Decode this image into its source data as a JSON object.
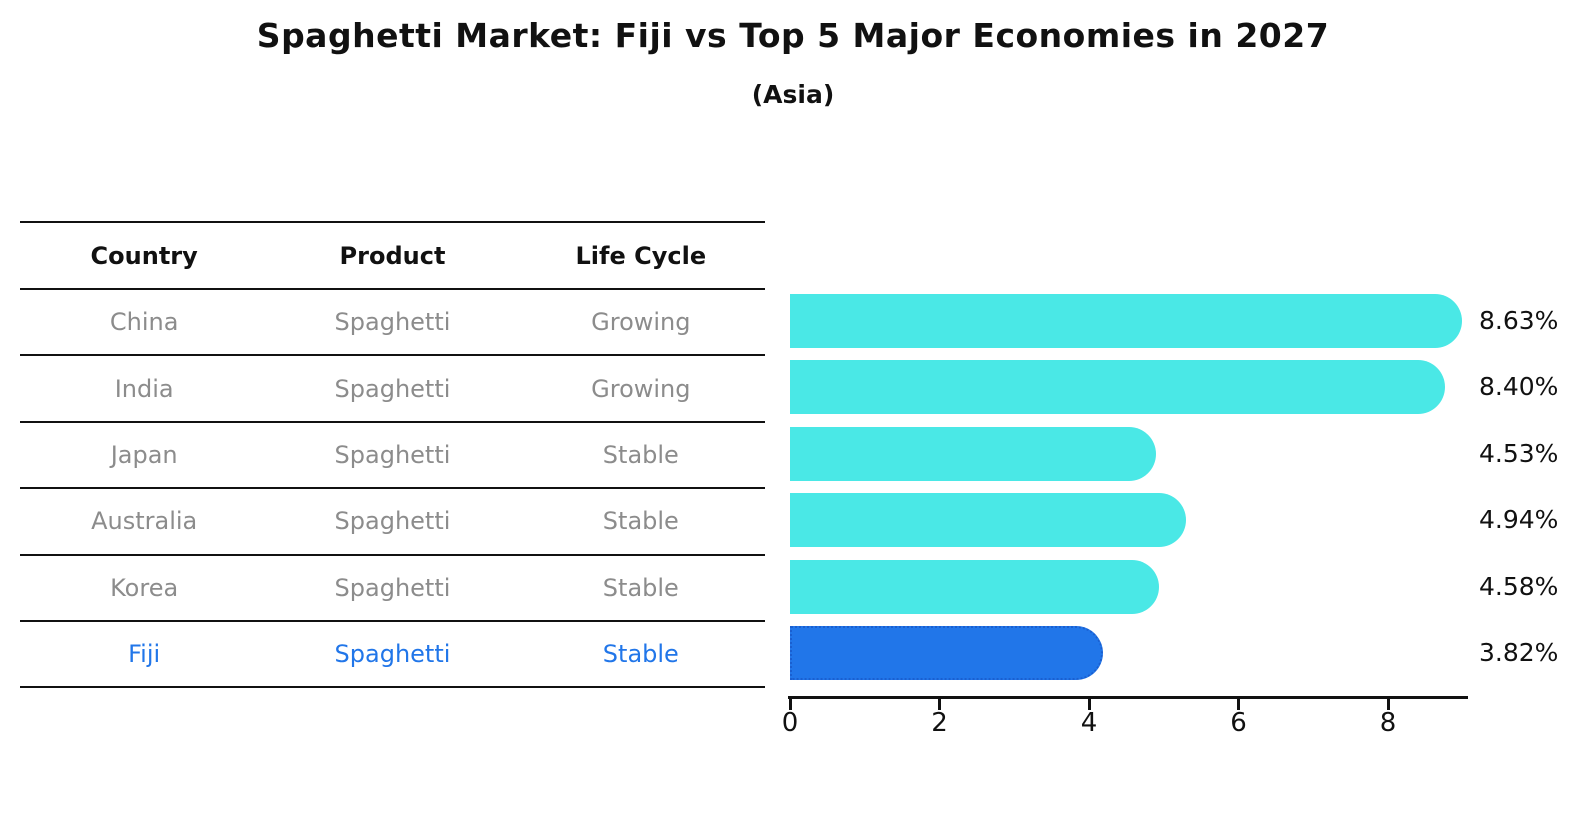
{
  "title": "Spaghetti Market: Fiji vs Top 5 Major Economies in 2027",
  "subtitle": "(Asia)",
  "table": {
    "headers": [
      "Country",
      "Product",
      "Life Cycle"
    ],
    "rows": [
      {
        "country": "China",
        "product": "Spaghetti",
        "life_cycle": "Growing",
        "highlighted": false
      },
      {
        "country": "India",
        "product": "Spaghetti",
        "life_cycle": "Growing",
        "highlighted": false
      },
      {
        "country": "Japan",
        "product": "Spaghetti",
        "life_cycle": "Stable",
        "highlighted": false
      },
      {
        "country": "Australia",
        "product": "Spaghetti",
        "life_cycle": "Stable",
        "highlighted": false
      },
      {
        "country": "Korea",
        "product": "Spaghetti",
        "life_cycle": "Stable",
        "highlighted": false
      },
      {
        "country": "Fiji",
        "product": "Spaghetti",
        "life_cycle": "Stable",
        "highlighted": true
      }
    ]
  },
  "chart_data": {
    "type": "bar",
    "orientation": "horizontal",
    "title": "Spaghetti Market: Fiji vs Top 5 Major Economies in 2027",
    "subtitle": "(Asia)",
    "categories": [
      "China",
      "India",
      "Japan",
      "Australia",
      "Korea",
      "Fiji"
    ],
    "values": [
      8.63,
      8.4,
      4.53,
      4.94,
      4.58,
      3.82
    ],
    "value_labels": [
      "8.63%",
      "8.40%",
      "4.53%",
      "4.94%",
      "4.58%",
      "3.82%"
    ],
    "x_ticks": [
      "0",
      "2",
      "4",
      "6",
      "8"
    ],
    "xlim": [
      0,
      9.07
    ],
    "grid": false,
    "legend": "none",
    "value_label_position": "right",
    "bar_color": "#4ae8e6",
    "highlight_bar_color": "#2176e9",
    "highlight_index": 5,
    "highlight_text_color": "#2176e9"
  }
}
